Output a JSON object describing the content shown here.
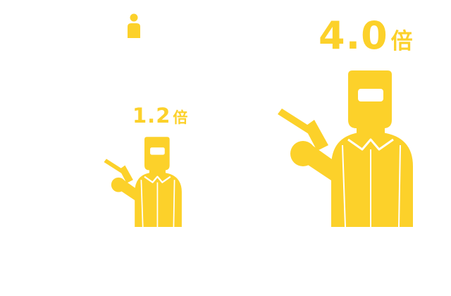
{
  "colors": {
    "accent": "#fcd12a",
    "background": "#ffffff",
    "visor": "#ffffff"
  },
  "figures": {
    "base": {
      "icon": "person-icon"
    },
    "small": {
      "icon": "welder-icon",
      "value": "1.2",
      "unit": "倍"
    },
    "large": {
      "icon": "welder-icon",
      "value": "4.0",
      "unit": "倍"
    }
  }
}
